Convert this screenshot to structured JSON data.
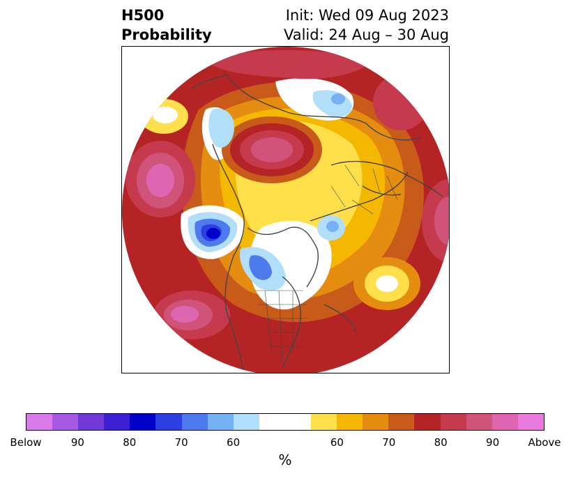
{
  "header": {
    "title_line1": "H500",
    "title_line2": "Probability",
    "init": "Init: Wed 09 Aug 2023",
    "valid": "Valid: 24 Aug – 30 Aug"
  },
  "colorbar": {
    "unit": "%",
    "colors": [
      "#d87ae8",
      "#a659e2",
      "#7039d8",
      "#3d20d4",
      "#0000cc",
      "#2c3fe0",
      "#4d7aec",
      "#76b2f3",
      "#b1def9",
      "#ffffff",
      "#ffe04a",
      "#f5b800",
      "#e58d10",
      "#c85a1a",
      "#b52424",
      "#c53a4d",
      "#d0547a",
      "#de66b0",
      "#e87ae0"
    ],
    "tick_labels": [
      "Below",
      "90",
      "80",
      "70",
      "60",
      "60",
      "70",
      "80",
      "90",
      "Above"
    ]
  },
  "legend": {
    "palette": {
      "deep_red": "#b52424",
      "magenta_red": "#c53a4d",
      "pink": "#d0547a",
      "orange": "#e58d10",
      "yellow": "#ffe04a",
      "light_blue": "#b1def9",
      "blue": "#4d7aec",
      "dark_blue": "#0000cc",
      "coastline": "#444444"
    }
  }
}
